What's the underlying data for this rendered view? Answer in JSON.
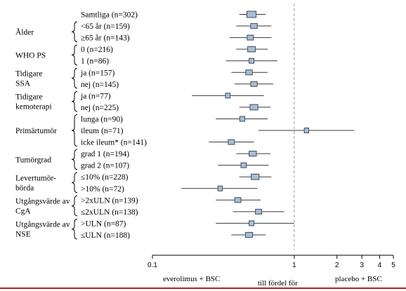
{
  "chart_data": {
    "type": "forest",
    "x_scale": "log",
    "xlim": [
      0.1,
      5
    ],
    "reference_line": 1,
    "x_ticks": [
      {
        "value": 0.1,
        "label": "0.1"
      },
      {
        "value": 1,
        "label": "1"
      },
      {
        "value": 2,
        "label": "2"
      },
      {
        "value": 3,
        "label": "3"
      },
      {
        "value": 4,
        "label": "4"
      },
      {
        "value": 5,
        "label": "5"
      }
    ],
    "groups": [
      {
        "label": "Ålder",
        "first": 1,
        "last": 2
      },
      {
        "label": "WHO PS",
        "first": 3,
        "last": 4
      },
      {
        "label": "Tidigare SSA",
        "first": 5,
        "last": 6
      },
      {
        "label": "Tidigare kemoterapi",
        "first": 7,
        "last": 8
      },
      {
        "label": "Primärtumör",
        "first": 9,
        "last": 11
      },
      {
        "label": "Tumörgrad",
        "first": 12,
        "last": 13
      },
      {
        "label": "Levertumör-börda",
        "first": 14,
        "last": 15
      },
      {
        "label": "Utgångsvärde av CgA",
        "first": 16,
        "last": 17
      },
      {
        "label": "Utgångsvärde av NSE",
        "first": 18,
        "last": 19
      }
    ],
    "rows": [
      {
        "label": "Samtliga (n=302)",
        "hr": 0.5,
        "lo": 0.41,
        "hi": 0.63,
        "n": 302
      },
      {
        "label": "<65 år (n=159)",
        "hr": 0.52,
        "lo": 0.39,
        "hi": 0.69,
        "n": 159
      },
      {
        "label": "≥65 år (n=143)",
        "hr": 0.49,
        "lo": 0.35,
        "hi": 0.69,
        "n": 143
      },
      {
        "label": "0 (n=216)",
        "hr": 0.5,
        "lo": 0.39,
        "hi": 0.65,
        "n": 216
      },
      {
        "label": "1 (n=86)",
        "hr": 0.5,
        "lo": 0.33,
        "hi": 0.76,
        "n": 86
      },
      {
        "label": "ja (n=157)",
        "hr": 0.48,
        "lo": 0.36,
        "hi": 0.65,
        "n": 157
      },
      {
        "label": "nej (n=145)",
        "hr": 0.52,
        "lo": 0.38,
        "hi": 0.71,
        "n": 145
      },
      {
        "label": "ja (n=77)",
        "hr": 0.34,
        "lo": 0.19,
        "hi": 0.61,
        "n": 77
      },
      {
        "label": "nej (n=225)",
        "hr": 0.52,
        "lo": 0.41,
        "hi": 0.68,
        "n": 225
      },
      {
        "label": "lunga (n=90)",
        "hr": 0.43,
        "lo": 0.28,
        "hi": 0.65,
        "n": 90
      },
      {
        "label": "ileum (n=71)",
        "hr": 1.22,
        "lo": 0.56,
        "hi": 2.65,
        "n": 71
      },
      {
        "label": "icke ileum* (n=141)",
        "hr": 0.36,
        "lo": 0.25,
        "hi": 0.52,
        "n": 141
      },
      {
        "label": "grad 1 (n=194)",
        "hr": 0.51,
        "lo": 0.39,
        "hi": 0.68,
        "n": 194
      },
      {
        "label": "grad 2 (n=107)",
        "hr": 0.44,
        "lo": 0.29,
        "hi": 0.66,
        "n": 107
      },
      {
        "label": "≤10% (n=228)",
        "hr": 0.53,
        "lo": 0.41,
        "hi": 0.69,
        "n": 228
      },
      {
        "label": ">10% (n=72)",
        "hr": 0.3,
        "lo": 0.16,
        "hi": 0.55,
        "n": 72
      },
      {
        "label": ">2xULN (n=139)",
        "hr": 0.4,
        "lo": 0.28,
        "hi": 0.58,
        "n": 139
      },
      {
        "label": "≤2xULN (n=138)",
        "hr": 0.56,
        "lo": 0.37,
        "hi": 0.85,
        "n": 138
      },
      {
        "label": ">ULN (n=87)",
        "hr": 0.5,
        "lo": 0.28,
        "hi": 1.0,
        "n": 87
      },
      {
        "label": "≤ULN (n=188)",
        "hr": 0.48,
        "lo": 0.36,
        "hi": 0.63,
        "n": 188
      }
    ],
    "axis_text": {
      "left": "everolimus + BSC",
      "center": "till fördel för",
      "right": "placebo + BSC"
    },
    "colors": {
      "box_fill": "#a8bed2",
      "box_stroke": "#3c4d5e",
      "line": "#3a3a3a",
      "reference": "#999999",
      "bottom_rule": "#b22222"
    }
  }
}
